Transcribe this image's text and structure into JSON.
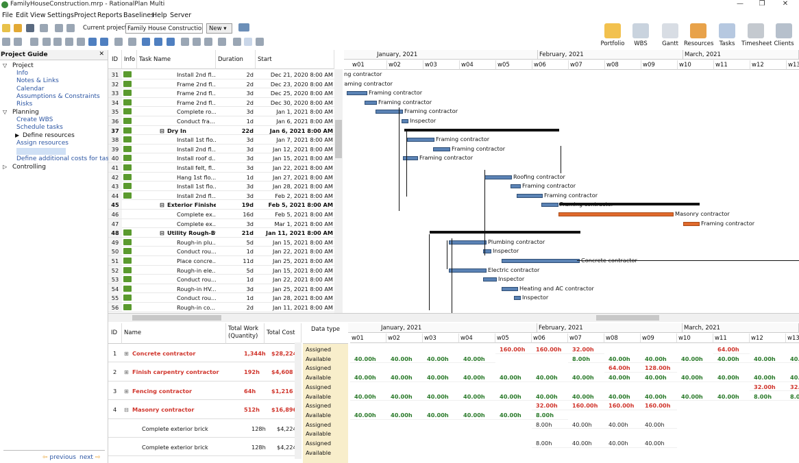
{
  "window": {
    "title": "FamilyHouseConstruction.mrp - RationalPlan Multi",
    "min": "—",
    "max": "❐",
    "close": "✕"
  },
  "menu": [
    "File",
    "Edit",
    "View",
    "Settings",
    "Project",
    "Reports",
    "Baselines",
    "Help",
    "Server"
  ],
  "toolbar": {
    "current_project_label": "Current project:",
    "current_project_value": "Family House Construction",
    "new_label": "New"
  },
  "big_buttons": [
    "Portfolio",
    "WBS",
    "Gantt",
    "Resources",
    "Tasks",
    "Timesheet",
    "Clients"
  ],
  "project_guide": {
    "title": "Project Guide",
    "close": "✕",
    "items": [
      {
        "label": "Project",
        "level": 0,
        "expanded": true
      },
      {
        "label": "Info",
        "level": 1,
        "link": true
      },
      {
        "label": "Notes & Links",
        "level": 1,
        "link": true
      },
      {
        "label": "Calendar",
        "level": 1,
        "link": true
      },
      {
        "label": "Assumptions & Constraints",
        "level": 1,
        "link": true
      },
      {
        "label": "Risks",
        "level": 1,
        "link": true
      },
      {
        "label": "Planning",
        "level": 0,
        "expanded": true
      },
      {
        "label": "Create WBS",
        "level": 1,
        "link": true
      },
      {
        "label": "Schedule tasks",
        "level": 1,
        "link": true
      },
      {
        "label": "Define resources",
        "level": 1,
        "link": false,
        "expander": true
      },
      {
        "label": "Assign resources",
        "level": 1,
        "link": true
      },
      {
        "label": "Estimate costs",
        "level": 1,
        "link": true,
        "selected": true
      },
      {
        "label": "Define additional costs for tasks",
        "level": 1,
        "link": true
      },
      {
        "label": "Controlling",
        "level": 0,
        "expanded": false
      }
    ],
    "prev": "previous",
    "next": "next"
  },
  "task_columns": [
    "ID",
    "Info",
    "Task Name",
    "Duration",
    "Start"
  ],
  "tasks": [
    {
      "id": "31",
      "name": "Install 2nd fl...",
      "dur": "2d",
      "start": "Dec 21, 2020 8:00 AM",
      "indent": 2
    },
    {
      "id": "32",
      "name": "Frame 2nd fl...",
      "dur": "2d",
      "start": "Dec 23, 2020 8:00 AM",
      "indent": 2
    },
    {
      "id": "33",
      "name": "Frame 2nd fl...",
      "dur": "3d",
      "start": "Dec 25, 2020 8:00 AM",
      "indent": 2
    },
    {
      "id": "34",
      "name": "Frame 2nd fl...",
      "dur": "2d",
      "start": "Dec 30, 2020 8:00 AM",
      "indent": 2
    },
    {
      "id": "35",
      "name": "Complete ro...",
      "dur": "3d",
      "start": "Jan 1, 2021 8:00 AM",
      "indent": 2
    },
    {
      "id": "36",
      "name": "Conduct fra...",
      "dur": "1d",
      "start": "Jan 6, 2021 8:00 AM",
      "indent": 2
    },
    {
      "id": "37",
      "name": "Dry In",
      "dur": "22d",
      "start": "Jan 6, 2021 8:00 AM",
      "indent": 1,
      "summary": true
    },
    {
      "id": "38",
      "name": "Install 1st flo...",
      "dur": "3d",
      "start": "Jan 7, 2021 8:00 AM",
      "indent": 2
    },
    {
      "id": "39",
      "name": "Install 2nd fl...",
      "dur": "3d",
      "start": "Jan 12, 2021 8:00 AM",
      "indent": 2
    },
    {
      "id": "40",
      "name": "Install roof d...",
      "dur": "3d",
      "start": "Jan 15, 2021 8:00 AM",
      "indent": 2
    },
    {
      "id": "41",
      "name": "Install felt, fl...",
      "dur": "3d",
      "start": "Jan 22, 2021 8:00 AM",
      "indent": 2
    },
    {
      "id": "42",
      "name": "Hang 1st flo...",
      "dur": "1d",
      "start": "Jan 27, 2021 8:00 AM",
      "indent": 2
    },
    {
      "id": "43",
      "name": "Install 1st flo...",
      "dur": "3d",
      "start": "Jan 28, 2021 8:00 AM",
      "indent": 2
    },
    {
      "id": "44",
      "name": "Install 2nd fl...",
      "dur": "3d",
      "start": "Feb 2, 2021 8:00 AM",
      "indent": 2
    },
    {
      "id": "45",
      "name": "Exterior Finishes",
      "dur": "19d",
      "start": "Feb 5, 2021 8:00 AM",
      "indent": 1,
      "summary": true,
      "noinfo": true
    },
    {
      "id": "46",
      "name": "Complete ex...",
      "dur": "16d",
      "start": "Feb 5, 2021 8:00 AM",
      "indent": 2,
      "noinfo": true
    },
    {
      "id": "47",
      "name": "Complete ex...",
      "dur": "3d",
      "start": "Mar 1, 2021 8:00 AM",
      "indent": 2,
      "noinfo": true
    },
    {
      "id": "48",
      "name": "Utility Rough-B9",
      "dur": "21d",
      "start": "Jan 11, 2021 8:00 AM",
      "indent": 1,
      "summary": true
    },
    {
      "id": "49",
      "name": "Rough-in plu...",
      "dur": "5d",
      "start": "Jan 15, 2021 8:00 AM",
      "indent": 2
    },
    {
      "id": "50",
      "name": "Conduct rou...",
      "dur": "1d",
      "start": "Jan 22, 2021 8:00 AM",
      "indent": 2
    },
    {
      "id": "51",
      "name": "Place concre...",
      "dur": "11d",
      "start": "Jan 25, 2021 8:00 AM",
      "indent": 2
    },
    {
      "id": "52",
      "name": "Rough-in ele...",
      "dur": "5d",
      "start": "Jan 15, 2021 8:00 AM",
      "indent": 2
    },
    {
      "id": "53",
      "name": "Conduct rou...",
      "dur": "1d",
      "start": "Jan 22, 2021 8:00 AM",
      "indent": 2
    },
    {
      "id": "54",
      "name": "Rough-in HV...",
      "dur": "3d",
      "start": "Jan 25, 2021 8:00 AM",
      "indent": 2
    },
    {
      "id": "55",
      "name": "Conduct rou...",
      "dur": "1d",
      "start": "Jan 28, 2021 8:00 AM",
      "indent": 2
    },
    {
      "id": "56",
      "name": "Rough-in co...",
      "dur": "2d",
      "start": "Jan 11, 2021 8:00 AM",
      "indent": 2
    }
  ],
  "months": [
    "January, 2021",
    "February, 2021",
    "March, 2021"
  ],
  "weeks": [
    "w01",
    "w02",
    "w03",
    "w04",
    "w05",
    "w06",
    "w07",
    "w08",
    "w09",
    "w10",
    "w11",
    "w12",
    "w13"
  ],
  "gantt_labels": [
    "ng contractor",
    "raming contractor",
    "Framing contractor",
    "Framing contractor",
    "Framing contractor",
    "Inspector",
    "Framing contractor",
    "Framing contractor",
    "Framing contractor",
    "Roofing contractor",
    "Framing contractor",
    "Framing contractor",
    "Framing contractor",
    "Masonry contractor",
    "Framing contractor",
    "Plumbing contractor",
    "Inspector",
    "Concrete contractor",
    "Electric contractor",
    "Inspector",
    "Heating and AC contractor",
    "Inspector",
    "Electric contractor"
  ],
  "resource_columns": [
    "ID",
    "Name",
    "Total Work (Quantity)",
    "Total Cost",
    "Data type"
  ],
  "resources": [
    {
      "id": "1",
      "name": "Concrete contractor",
      "work": "1,344h",
      "cost": "$28,224",
      "parent": true,
      "expanded": false
    },
    {
      "id": "2",
      "name": "Finish carpentry contractor",
      "work": "192h",
      "cost": "$4,608",
      "parent": true,
      "expanded": false
    },
    {
      "id": "3",
      "name": "Fencing contractor",
      "work": "64h",
      "cost": "$1,216",
      "parent": true,
      "expanded": false
    },
    {
      "id": "4",
      "name": "Masonry contractor",
      "work": "512h",
      "cost": "$16,896",
      "parent": true,
      "expanded": true
    },
    {
      "id": "",
      "name": "Complete exterior brick",
      "work": "128h",
      "cost": "$4,224",
      "parent": false
    },
    {
      "id": "",
      "name": "Complete exterior brick",
      "work": "128h",
      "cost": "$4,224",
      "parent": false
    }
  ],
  "data_types": [
    "Assigned",
    "Available"
  ],
  "usage": [
    {
      "assigned": [
        "",
        "",
        "",
        "",
        "160.00h",
        "160.00h",
        "32.00h",
        "",
        "",
        "",
        "64.00h",
        "",
        ""
      ],
      "available": [
        "40.00h",
        "40.00h",
        "40.00h",
        "40.00h",
        "",
        "",
        "8.00h",
        "40.00h",
        "40.00h",
        "40.00h",
        "40.00h",
        "40.00h",
        "40.00h"
      ]
    },
    {
      "assigned": [
        "",
        "",
        "",
        "",
        "",
        "",
        "",
        "64.00h",
        "128.00h",
        "",
        "",
        "",
        ""
      ],
      "available": [
        "40.00h",
        "40.00h",
        "40.00h",
        "40.00h",
        "40.00h",
        "40.00h",
        "40.00h",
        "40.00h",
        "40.00h",
        "40.00h",
        "40.00h",
        "40.00h",
        "40.00h"
      ]
    },
    {
      "assigned": [
        "",
        "",
        "",
        "",
        "",
        "",
        "",
        "",
        "",
        "",
        "",
        "32.00h",
        "32.00h"
      ],
      "available": [
        "40.00h",
        "40.00h",
        "40.00h",
        "40.00h",
        "40.00h",
        "40.00h",
        "40.00h",
        "40.00h",
        "40.00h",
        "40.00h",
        "40.00h",
        "8.00h",
        "8.00h"
      ]
    },
    {
      "assigned": [
        "",
        "",
        "",
        "",
        "",
        "32.00h",
        "160.00h",
        "160.00h",
        "160.00h",
        "",
        "",
        "",
        ""
      ],
      "available": [
        "40.00h",
        "40.00h",
        "40.00h",
        "40.00h",
        "40.00h",
        "8.00h",
        "",
        "",
        "",
        "",
        "",
        "",
        ""
      ]
    },
    {
      "assigned": [
        "",
        "",
        "",
        "",
        "",
        "8.00h",
        "40.00h",
        "40.00h",
        "40.00h",
        "",
        "",
        "",
        ""
      ],
      "available": [
        "",
        "",
        "",
        "",
        "",
        "",
        "",
        "",
        "",
        "",
        "",
        "",
        ""
      ],
      "plain": true
    },
    {
      "assigned": [
        "",
        "",
        "",
        "",
        "",
        "8.00h",
        "40.00h",
        "40.00h",
        "40.00h",
        "",
        "",
        "",
        ""
      ],
      "available": [
        "",
        "",
        "",
        "",
        "",
        "",
        "",
        "",
        "",
        "",
        "",
        "",
        ""
      ],
      "plain": true
    }
  ]
}
